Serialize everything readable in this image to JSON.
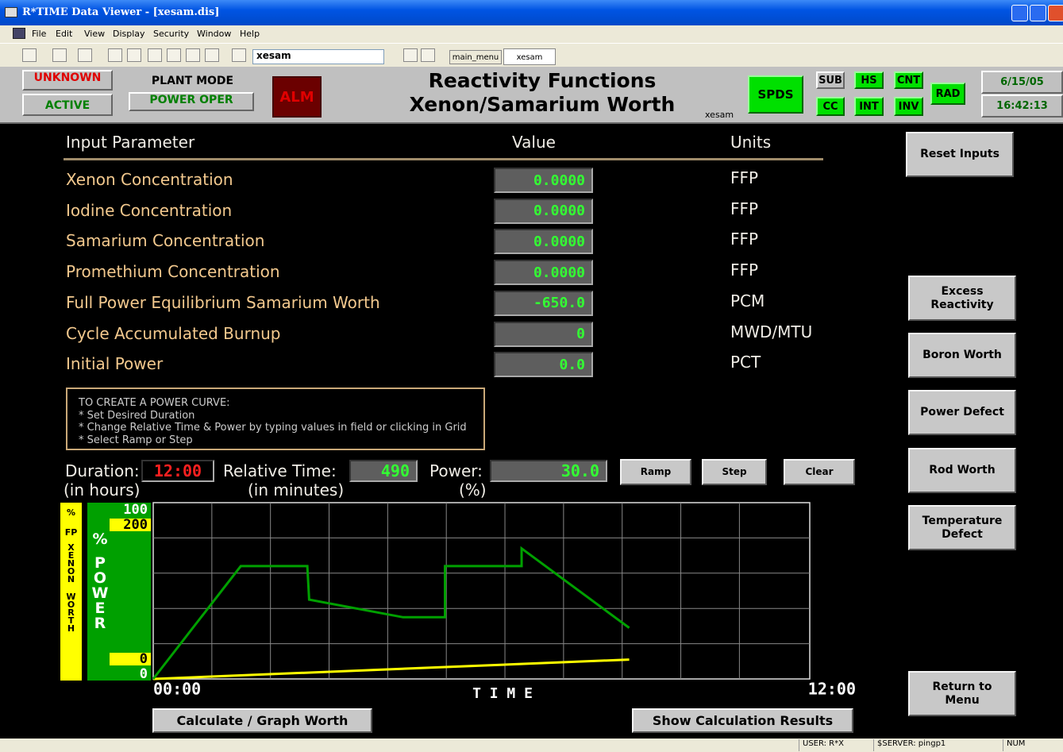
{
  "window": {
    "title": "R*TIME Data Viewer - [xesam.dis]",
    "menu": [
      "File",
      "Edit",
      "View",
      "Display",
      "Security",
      "Window",
      "Help"
    ]
  },
  "toolbar": {
    "combo": "xesam",
    "tabs": [
      "main_menu",
      "xesam"
    ]
  },
  "header": {
    "status1": "UNKNOWN",
    "status2": "ACTIVE",
    "plant_mode_label": "PLANT MODE",
    "plant_mode": "POWER OPER",
    "alarm": "ALM",
    "title1": "Reactivity Functions",
    "title2": "Xenon/Samarium Worth",
    "screen_id": "xesam",
    "spds": "SPDS",
    "indicators": [
      "SUB",
      "HS",
      "CNT",
      "CC",
      "INT",
      "INV",
      "RAD"
    ],
    "date": "6/15/05",
    "time": "16:42:13"
  },
  "table": {
    "headers": [
      "Input Parameter",
      "Value",
      "Units"
    ],
    "rows": [
      [
        "Xenon Concentration",
        "0.0000",
        "FFP"
      ],
      [
        "Iodine Concentration",
        "0.0000",
        "FFP"
      ],
      [
        "Samarium Concentration",
        "0.0000",
        "FFP"
      ],
      [
        "Promethium Concentration",
        "0.0000",
        "FFP"
      ],
      [
        "Full Power Equilibrium Samarium Worth",
        "-650.0",
        "PCM"
      ],
      [
        "Cycle Accumulated Burnup",
        "0",
        "MWD/MTU"
      ],
      [
        "Initial Power",
        "0.0",
        "PCT"
      ]
    ]
  },
  "instructions": [
    "TO CREATE A POWER CURVE:",
    "* Set Desired Duration",
    "* Change Relative Time & Power by typing values in field or clicking in Grid",
    "* Select Ramp or Step"
  ],
  "curve_inputs": {
    "duration_label": "Duration:",
    "duration_unit": "(in hours)",
    "duration": "12:00",
    "time_label": "Relative Time:",
    "time_unit": "(in minutes)",
    "time": "490",
    "power_label": "Power:",
    "power_unit": "(%)",
    "power": "30.0",
    "buttons": [
      "Ramp",
      "Step",
      "Clear"
    ]
  },
  "graph": {
    "xenon_axis_label": [
      "%",
      "FP",
      "XENON",
      "WORTH"
    ],
    "power_axis_label": [
      "%",
      "POWER"
    ],
    "power_yticks": [
      0,
      100
    ],
    "xenon_yticks": [
      0,
      200
    ],
    "power_ylim": [
      0,
      100
    ],
    "xenon_ylim": [
      0,
      200
    ],
    "xlim": [
      0,
      720
    ],
    "xticks": [
      {
        "value": 0,
        "label": "00:00"
      },
      {
        "value": 720,
        "label": "12:00"
      }
    ],
    "x_label": "T I M E",
    "power_curve": {
      "x": [
        0,
        96,
        169,
        171,
        274,
        320,
        320,
        404,
        404,
        522
      ],
      "y": [
        0,
        64,
        64,
        45,
        35,
        35,
        64,
        64,
        74,
        29
      ]
    },
    "xenon_curve": {
      "x": [
        0,
        522
      ],
      "y": [
        0,
        22
      ]
    }
  },
  "bottom_buttons": [
    "Calculate / Graph Worth",
    "Show Calculation Results"
  ],
  "side_buttons": [
    "Reset Inputs",
    "Excess Reactivity",
    "Boron Worth",
    "Power Defect",
    "Rod Worth",
    "Temperature Defect",
    "Return to Menu"
  ],
  "status_bar": [
    "USER: R*X",
    "$SERVER: pingp1",
    "NUM"
  ]
}
